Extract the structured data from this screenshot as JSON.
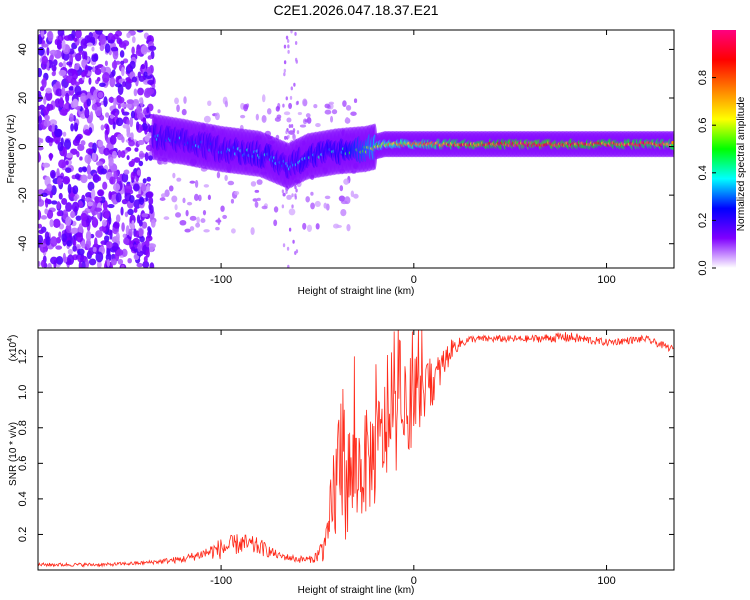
{
  "title": "C2E1.2026.047.18.37.E21",
  "chart_data": [
    {
      "id": "spectrogram",
      "type": "heatmap",
      "xlabel": "Height of straight line (km)",
      "ylabel": "Frequency (Hz)",
      "xlim": [
        -195,
        135
      ],
      "ylim": [
        -50,
        48
      ],
      "xticks": [
        -100,
        0,
        100
      ],
      "yticks": [
        -40,
        -20,
        0,
        20,
        40
      ],
      "colorbar": {
        "label": "Normalized spectral amplitude",
        "range": [
          0,
          1
        ],
        "ticks": [
          "0.0",
          "0.2",
          "0.4",
          "0.6",
          "0.8"
        ],
        "colors": [
          "#ffffff",
          "#8000ff",
          "#0000ff",
          "#00ffff",
          "#00ff00",
          "#ffff00",
          "#ff8000",
          "#ff0000",
          "#ff0080"
        ]
      },
      "signal_band": {
        "x": [
          -135,
          -120,
          -100,
          -80,
          -65,
          -55,
          -40,
          -25,
          -15,
          0,
          20,
          60,
          95,
          135
        ],
        "frequency": [
          4,
          2,
          -1,
          -3,
          -8,
          -4,
          -2,
          -1,
          1,
          1,
          1,
          1,
          1,
          1
        ],
        "amplitude": [
          0.35,
          0.35,
          0.35,
          0.4,
          0.35,
          0.4,
          0.4,
          0.55,
          0.7,
          0.75,
          0.85,
          0.95,
          0.9,
          0.85
        ]
      },
      "noise_region_x": [
        -195,
        -135
      ]
    },
    {
      "id": "snr",
      "type": "line",
      "xlabel": "Height of straight line (km)",
      "ylabel": "SNR (10 * v/v)",
      "multiplier": "(x10",
      "multiplier_exp": "4",
      "xlim": [
        -195,
        135
      ],
      "ylim": [
        0,
        1.35
      ],
      "xticks": [
        -100,
        0,
        100
      ],
      "yticks": [
        0.2,
        0.4,
        0.6,
        0.8,
        1.0,
        1.2
      ],
      "color": "#ff2a1a",
      "series": {
        "name": "SNR",
        "x": [
          -195,
          -160,
          -140,
          -120,
          -110,
          -100,
          -90,
          -80,
          -70,
          -60,
          -52,
          -45,
          -42,
          -40,
          -38,
          -35,
          -30,
          -25,
          -20,
          -15,
          -10,
          -5,
          0,
          5,
          10,
          15,
          20,
          25,
          30,
          40,
          60,
          80,
          100,
          120,
          135
        ],
        "y": [
          0.03,
          0.03,
          0.04,
          0.06,
          0.09,
          0.12,
          0.15,
          0.13,
          0.08,
          0.06,
          0.06,
          0.15,
          0.4,
          0.5,
          0.7,
          0.5,
          0.55,
          0.6,
          0.65,
          0.78,
          0.8,
          0.85,
          0.92,
          1.0,
          1.05,
          1.15,
          1.25,
          1.28,
          1.3,
          1.3,
          1.3,
          1.31,
          1.28,
          1.3,
          1.24
        ],
        "noise_amplitude": [
          0.01,
          0.01,
          0.01,
          0.02,
          0.03,
          0.06,
          0.06,
          0.05,
          0.02,
          0.02,
          0.02,
          0.1,
          0.3,
          0.35,
          0.4,
          0.35,
          0.3,
          0.3,
          0.3,
          0.3,
          0.25,
          0.25,
          0.2,
          0.15,
          0.12,
          0.1,
          0.05,
          0.03,
          0.02,
          0.02,
          0.02,
          0.03,
          0.02,
          0.02,
          0.02
        ]
      }
    }
  ]
}
